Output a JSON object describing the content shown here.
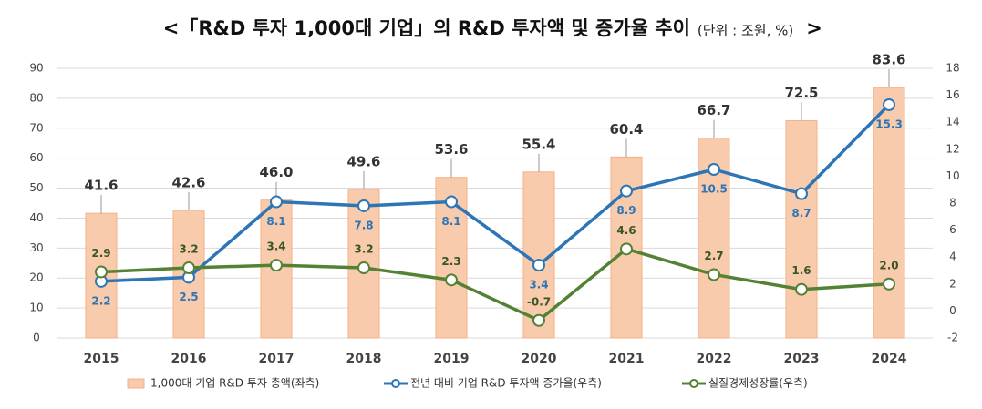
{
  "chart_data": {
    "type": "combo",
    "title": "<「R&D 투자 1,000대 기업」의 R&D 투자액 및 증가율 추이",
    "subtitle": "(단위 : 조원, %)",
    "title_suffix": ">",
    "categories": [
      "2015",
      "2016",
      "2017",
      "2018",
      "2019",
      "2020",
      "2021",
      "2022",
      "2023",
      "2024"
    ],
    "ylim": [
      0,
      90
    ],
    "yticks": [
      0,
      10,
      20,
      30,
      40,
      50,
      60,
      70,
      80,
      90
    ],
    "y2lim": [
      -2,
      18
    ],
    "y2ticks": [
      -2,
      0,
      2,
      4,
      6,
      8,
      10,
      12,
      14,
      16,
      18
    ],
    "series": [
      {
        "name": "1,000대 기업 R&D 투자 총액(좌측)",
        "type": "bar",
        "color": "#f8cbad",
        "edge": "#f4b183",
        "values": [
          41.6,
          42.6,
          46.0,
          49.6,
          53.6,
          55.4,
          60.4,
          66.7,
          72.5,
          83.6
        ],
        "value_labels": [
          "41.6",
          "42.6",
          "46.0",
          "49.6",
          "53.6",
          "55.4",
          "60.4",
          "66.7",
          "72.5",
          "83.6"
        ]
      },
      {
        "name": "전년 대비 기업 R&D 투자액 증가율(우측)",
        "type": "line",
        "axis": "y2",
        "color": "#2e75b6",
        "values": [
          2.2,
          2.5,
          8.1,
          7.8,
          8.1,
          3.4,
          8.9,
          10.5,
          8.7,
          15.3
        ]
      },
      {
        "name": "실질경제성장률(우측)",
        "type": "line",
        "axis": "y2",
        "color": "#548235",
        "values": [
          2.9,
          3.2,
          3.4,
          3.2,
          2.3,
          -0.7,
          4.6,
          2.7,
          1.6,
          2.0
        ],
        "value_labels": [
          "2.9",
          "3.2",
          "3.4",
          "3.2",
          "2.3",
          "-0.7",
          "4.6",
          "2.7",
          "1.6",
          "2.0"
        ]
      }
    ]
  }
}
